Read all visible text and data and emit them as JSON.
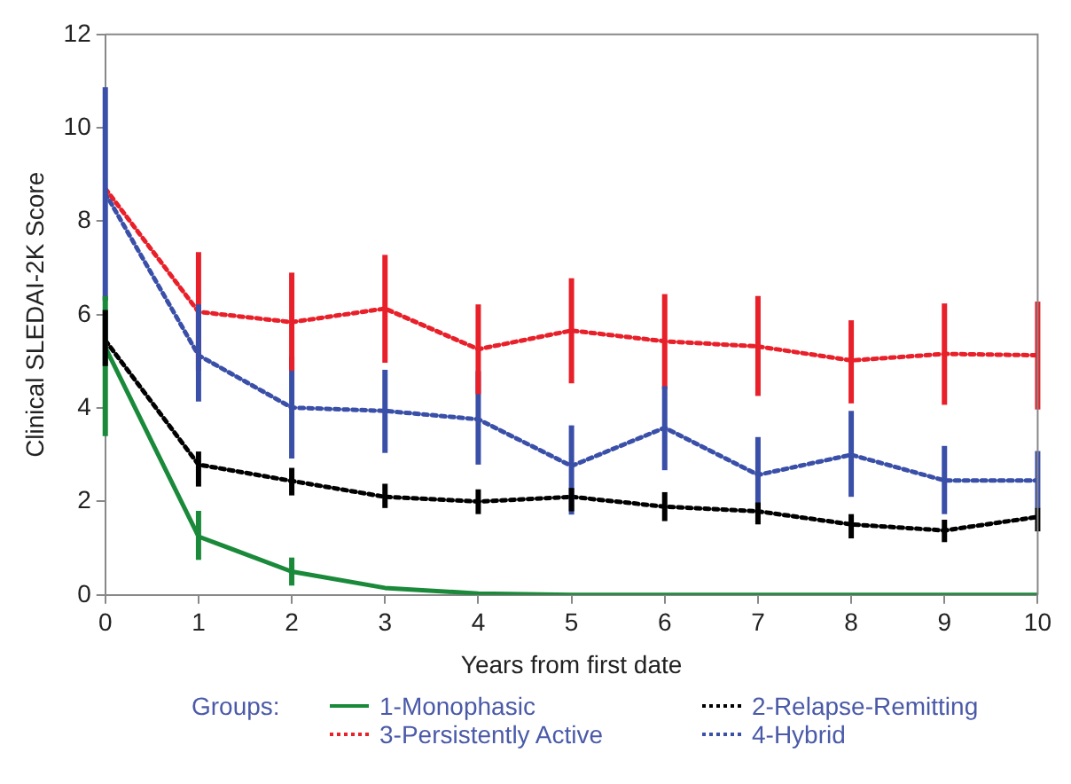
{
  "chart_data": {
    "type": "line",
    "xlabel": "Years from first date",
    "ylabel": "Clinical SLEDAI-2K Score",
    "legend_title": "Groups:",
    "legend": "bottom",
    "grid": false,
    "marker": "none",
    "x": [
      0,
      1,
      2,
      3,
      4,
      5,
      6,
      7,
      8,
      9,
      10
    ],
    "xlim": [
      0,
      10
    ],
    "xticks": [
      0,
      1,
      2,
      3,
      4,
      5,
      6,
      7,
      8,
      9,
      10
    ],
    "ylim": [
      0,
      12
    ],
    "yticks": [
      0,
      2,
      4,
      6,
      8,
      10,
      12
    ],
    "series": [
      {
        "name": "1-Monophasic",
        "color": "#1a8a3a",
        "line_style": "solid",
        "values": [
          5.3,
          1.25,
          0.5,
          0.15,
          0.03,
          0,
          0,
          0,
          0,
          0,
          0
        ],
        "errors": [
          [
            3.4,
            6.4
          ],
          [
            0.75,
            1.8
          ],
          [
            0.2,
            0.8
          ],
          null,
          null,
          null,
          null,
          null,
          null,
          null,
          null
        ]
      },
      {
        "name": "2-Relapse-Remitting",
        "color": "#000000",
        "line_style": "dotted",
        "values": [
          5.45,
          2.79,
          2.44,
          2.1,
          2.0,
          2.1,
          1.89,
          1.79,
          1.51,
          1.38,
          1.67
        ],
        "errors": [
          [
            4.9,
            6.1
          ],
          [
            2.32,
            3.07
          ],
          [
            2.13,
            2.72
          ],
          [
            1.86,
            2.38
          ],
          [
            1.73,
            2.26
          ],
          [
            1.79,
            2.29
          ],
          [
            1.58,
            2.2
          ],
          [
            1.51,
            1.98
          ],
          [
            1.21,
            1.73
          ],
          [
            1.13,
            1.61
          ],
          [
            1.36,
            1.86
          ]
        ]
      },
      {
        "name": "3-Persistently Active",
        "color": "#e8202a",
        "line_style": "dotted",
        "values": [
          8.7,
          6.06,
          5.84,
          6.13,
          5.26,
          5.66,
          5.43,
          5.32,
          5.02,
          5.16,
          5.13
        ],
        "errors": [
          null,
          [
            4.8,
            7.34
          ],
          [
            4.8,
            6.9
          ],
          [
            4.97,
            7.28
          ],
          [
            4.3,
            6.22
          ],
          [
            4.53,
            6.78
          ],
          [
            4.4,
            6.44
          ],
          [
            4.26,
            6.4
          ],
          [
            4.1,
            5.88
          ],
          [
            4.07,
            6.24
          ],
          [
            3.97,
            6.28
          ]
        ]
      },
      {
        "name": "4-Hybrid",
        "color": "#3a4fa8",
        "line_style": "dotted",
        "values": [
          8.6,
          5.13,
          4.01,
          3.94,
          3.76,
          2.76,
          3.58,
          2.57,
          3.0,
          2.45,
          2.45
        ],
        "errors": [
          [
            6.3,
            10.87
          ],
          [
            4.14,
            6.22
          ],
          [
            2.92,
            5.1
          ],
          [
            3.04,
            4.82
          ],
          [
            2.79,
            4.79
          ],
          [
            1.72,
            3.63
          ],
          [
            2.67,
            4.47
          ],
          [
            1.76,
            3.38
          ],
          [
            2.1,
            3.94
          ],
          [
            1.73,
            3.19
          ],
          [
            1.85,
            3.08
          ]
        ]
      }
    ]
  }
}
